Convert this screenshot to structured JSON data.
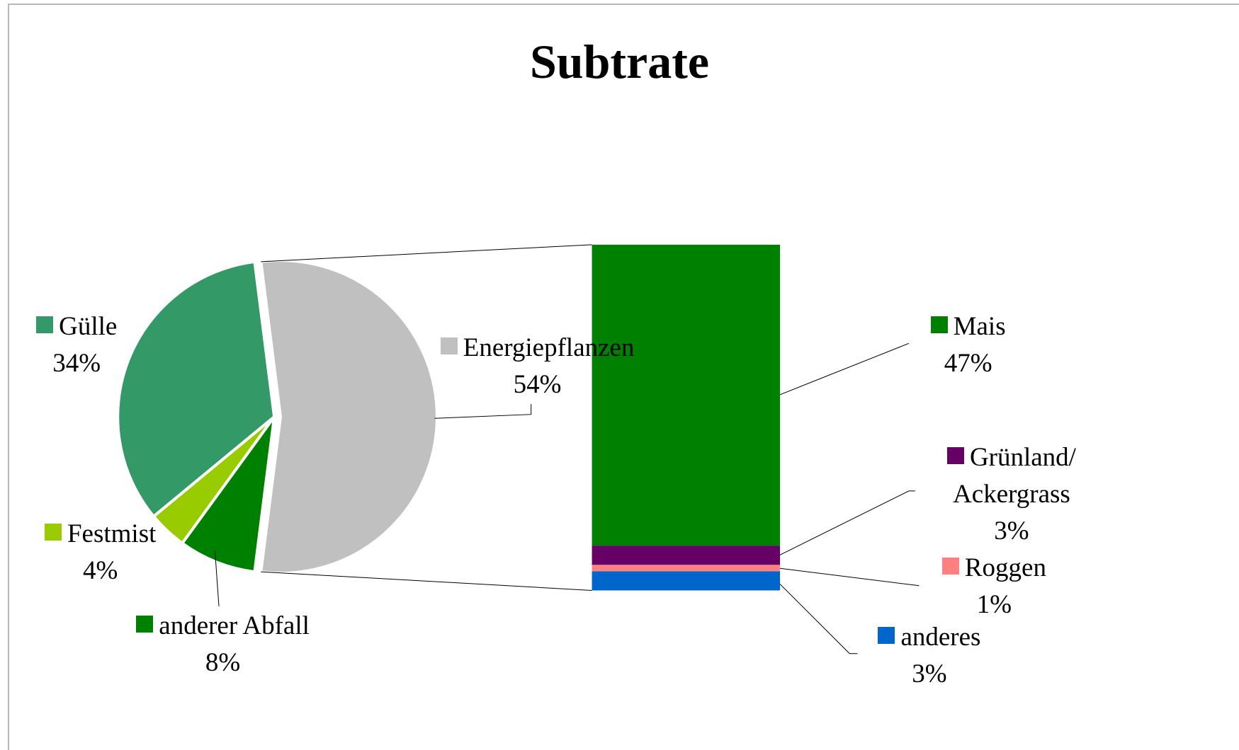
{
  "chart_data": {
    "type": "pie",
    "title": "Subtrate",
    "categories": [
      "Energiepflanzen",
      "anderer Abfall",
      "Festmist",
      "Gülle"
    ],
    "values": [
      54,
      8,
      4,
      34
    ],
    "value_labels": [
      "54%",
      "8%",
      "4%",
      "34%"
    ],
    "colors": [
      "#c0c0c0",
      "#008000",
      "#99cc00",
      "#339966"
    ],
    "breakdown": {
      "type": "bar",
      "categories": [
        "Mais",
        "Grünland/ Ackergrass",
        "Roggen",
        "anderes"
      ],
      "values": [
        47,
        3,
        1,
        3
      ],
      "value_labels": [
        "47%",
        "3%",
        "1%",
        "3%"
      ],
      "colors": [
        "#008000",
        "#660066",
        "#ff8080",
        "#0066cc"
      ]
    }
  }
}
